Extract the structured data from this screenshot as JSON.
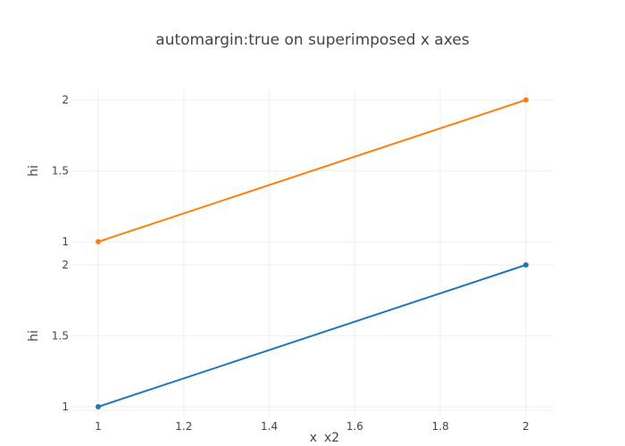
{
  "chart_data": {
    "type": "line",
    "title": "automargin:true on superimposed x axes",
    "xlabels": [
      "x",
      "x2"
    ],
    "x_ticks": [
      1,
      1.2,
      1.4,
      1.6,
      1.8,
      2
    ],
    "x_tick_labels": [
      "1",
      "1.2",
      "1.4",
      "1.6",
      "1.8",
      "2"
    ],
    "xlim": [
      1,
      2
    ],
    "grid": true,
    "subplots": [
      {
        "ylabel": "hi",
        "ylim": [
          1,
          2
        ],
        "y_ticks": [
          1,
          1.5,
          2
        ],
        "y_tick_labels": [
          "1",
          "1.5",
          "2"
        ],
        "series": [
          {
            "x": [
              1,
              2
            ],
            "y": [
              1,
              2
            ],
            "color": "#ff7f0e"
          }
        ]
      },
      {
        "ylabel": "hi",
        "ylim": [
          1,
          2
        ],
        "y_ticks": [
          1,
          1.5,
          2
        ],
        "y_tick_labels": [
          "1",
          "1.5",
          "2"
        ],
        "series": [
          {
            "x": [
              1,
              2
            ],
            "y": [
              1,
              2
            ],
            "color": "#1f77b4"
          }
        ]
      }
    ]
  }
}
